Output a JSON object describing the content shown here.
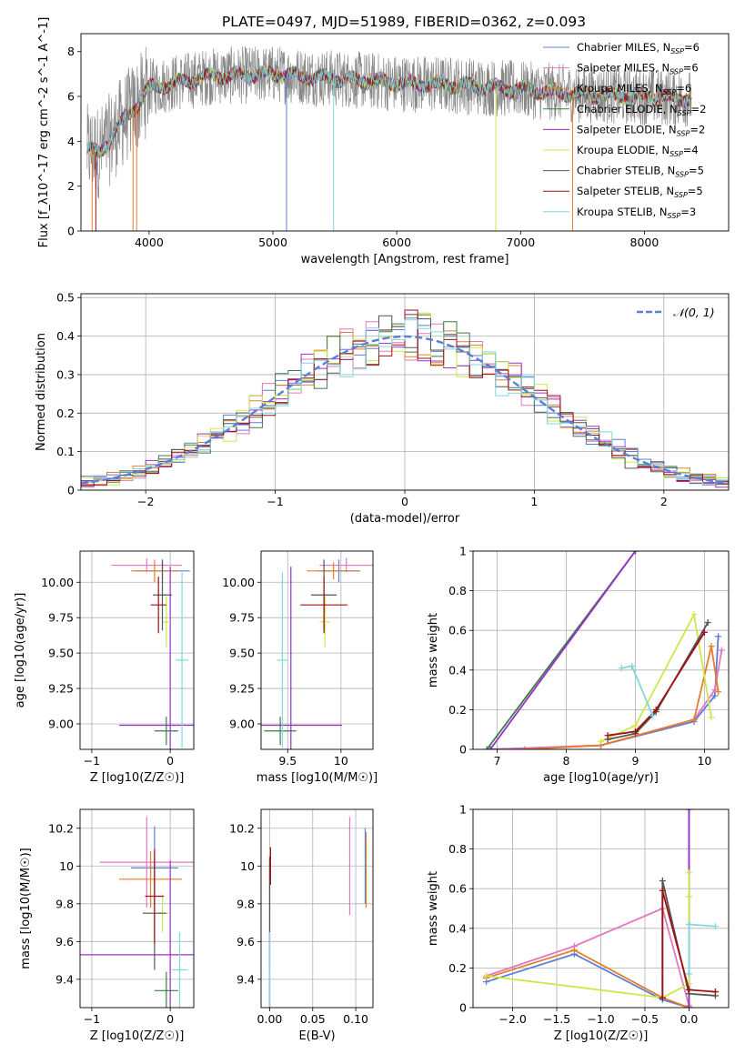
{
  "figure": {
    "title": "PLATE=0497, MJD=51989, FIBERID=0362, z=0.093"
  },
  "colors": {
    "Chabrier MILES": "#5b7fd6",
    "Salpeter MILES": "#e377c2",
    "Kroupa MILES": "#e87b2a",
    "Chabrier ELODIE": "#3a7d44",
    "Salpeter ELODIE": "#9b30c9",
    "Kroupa ELODIE": "#cfe64b",
    "Chabrier STELIB": "#555555",
    "Salpeter STELIB": "#a01010",
    "Kroupa STELIB": "#7fd8dc",
    "data": "#888888"
  },
  "chart_data": [
    {
      "type": "line",
      "panel": "spectrum",
      "xlabel": "wavelength [Angstrom, rest frame]",
      "ylabel": "Flux [f_λ10^-17 erg cm^-2 s^-1 A^-1]",
      "xlim": [
        3450,
        8680
      ],
      "ylim": [
        0,
        8.8
      ],
      "xticks": [
        4000,
        5000,
        6000,
        7000,
        8000
      ],
      "yticks": [
        0,
        2,
        4,
        6,
        8
      ],
      "grid": false,
      "legend_position": "right",
      "legend": [
        {
          "label": "Chabrier MILES, N_SSP=6",
          "series": "Chabrier MILES"
        },
        {
          "label": "Salpeter MILES, N_SSP=6",
          "series": "Salpeter MILES"
        },
        {
          "label": "Kroupa MILES, N_SSP=6",
          "series": "Kroupa MILES"
        },
        {
          "label": "Chabrier ELODIE, N_SSP=2",
          "series": "Chabrier ELODIE"
        },
        {
          "label": "Salpeter ELODIE, N_SSP=2",
          "series": "Salpeter ELODIE"
        },
        {
          "label": "Kroupa ELODIE, N_SSP=4",
          "series": "Kroupa ELODIE"
        },
        {
          "label": "Chabrier STELIB, N_SSP=5",
          "series": "Chabrier STELIB"
        },
        {
          "label": "Salpeter STELIB, N_SSP=5",
          "series": "Salpeter STELIB"
        },
        {
          "label": "Kroupa STELIB, N_SSP=3",
          "series": "Kroupa STELIB"
        }
      ],
      "continuum": {
        "x": [
          3500,
          3600,
          3700,
          3800,
          3900,
          4000,
          4200,
          4500,
          5000,
          5500,
          6000,
          6500,
          7000,
          7500,
          8000,
          8400
        ],
        "y": [
          3.6,
          3.5,
          4.2,
          5.0,
          5.6,
          6.4,
          6.6,
          6.9,
          7.0,
          6.8,
          6.6,
          6.5,
          6.3,
          6.1,
          6.0,
          5.9
        ]
      }
    },
    {
      "type": "line",
      "panel": "residual-distribution",
      "xlabel": "(data-model)/error",
      "ylabel": "Normed distribution",
      "xlim": [
        -2.5,
        2.5
      ],
      "ylim": [
        0,
        0.51
      ],
      "xticks": [
        -2,
        -1,
        0,
        1,
        2
      ],
      "yticks": [
        0.0,
        0.1,
        0.2,
        0.3,
        0.4,
        0.5
      ],
      "grid": true,
      "legend_position": "top-right",
      "legend": [
        {
          "label": "𝒩(0, 1)"
        }
      ],
      "bins": [
        -2.5,
        2.5,
        50
      ]
    },
    {
      "type": "scatter",
      "panel": "age-vs-Z",
      "xlabel": "Z [log10(Z/Z☉)]",
      "ylabel": "age  [log10(age/yr)]",
      "xlim": [
        -1.15,
        0.3
      ],
      "ylim": [
        8.82,
        10.22
      ],
      "xticks": [
        -1,
        0
      ],
      "yticks": [
        9.0,
        9.25,
        9.5,
        9.75,
        10.0
      ],
      "yticklabels": [
        "9.00",
        "9.25",
        "9.50",
        "9.75",
        "10.00"
      ],
      "grid": true,
      "points": [
        {
          "series": "Chabrier MILES",
          "x": -0.1,
          "y": 10.08,
          "xerr": 0.35,
          "yerr": 0.06
        },
        {
          "series": "Salpeter MILES",
          "x": -0.3,
          "y": 10.12,
          "xerr": 0.45,
          "yerr": 0.05
        },
        {
          "series": "Kroupa MILES",
          "x": -0.2,
          "y": 10.08,
          "xerr": 0.3,
          "yerr": 0.08
        },
        {
          "series": "Chabrier ELODIE",
          "x": -0.05,
          "y": 8.95,
          "xerr": 0.15,
          "yerr": 0.1
        },
        {
          "series": "Salpeter ELODIE",
          "x": 0.0,
          "y": 8.99,
          "xerr": 0.65,
          "yerr": 1.12
        },
        {
          "series": "Kroupa ELODIE",
          "x": -0.05,
          "y": 9.72,
          "xerr": 0.05,
          "yerr": 0.18
        },
        {
          "series": "Chabrier STELIB",
          "x": -0.1,
          "y": 9.91,
          "xerr": 0.12,
          "yerr": 0.25
        },
        {
          "series": "Salpeter STELIB",
          "x": -0.15,
          "y": 9.84,
          "xerr": 0.1,
          "yerr": 0.2
        },
        {
          "series": "Kroupa STELIB",
          "x": 0.15,
          "y": 9.45,
          "xerr": 0.08,
          "yerr": 0.62
        }
      ]
    },
    {
      "type": "scatter",
      "panel": "age-vs-mass",
      "xlabel": "mass [log10(M/M☉)]",
      "ylabel": "",
      "xlim": [
        9.25,
        10.3
      ],
      "ylim": [
        8.82,
        10.22
      ],
      "xticks": [
        9.5,
        10.0
      ],
      "yticks": [
        9.0,
        9.25,
        9.5,
        9.75,
        10.0
      ],
      "yticklabels": [
        "9.00",
        "9.25",
        "9.50",
        "9.75",
        "10.00"
      ],
      "grid": true,
      "points": [
        {
          "series": "Chabrier MILES",
          "x": 9.98,
          "y": 10.08,
          "xerr": 0.2,
          "yerr": 0.08
        },
        {
          "series": "Salpeter MILES",
          "x": 10.05,
          "y": 10.12,
          "xerr": 0.25,
          "yerr": 0.05
        },
        {
          "series": "Kroupa MILES",
          "x": 9.93,
          "y": 10.08,
          "xerr": 0.25,
          "yerr": 0.06
        },
        {
          "series": "Chabrier ELODIE",
          "x": 9.43,
          "y": 8.95,
          "xerr": 0.15,
          "yerr": 0.1
        },
        {
          "series": "Salpeter ELODIE",
          "x": 9.53,
          "y": 8.99,
          "xerr": 0.48,
          "yerr": 1.12
        },
        {
          "series": "Kroupa ELODIE",
          "x": 9.85,
          "y": 9.72,
          "xerr": 0.05,
          "yerr": 0.18
        },
        {
          "series": "Chabrier STELIB",
          "x": 9.84,
          "y": 9.91,
          "xerr": 0.12,
          "yerr": 0.25
        },
        {
          "series": "Salpeter STELIB",
          "x": 9.84,
          "y": 9.84,
          "xerr": 0.22,
          "yerr": 0.2
        },
        {
          "series": "Kroupa STELIB",
          "x": 9.45,
          "y": 9.45,
          "xerr": 0.05,
          "yerr": 0.62
        }
      ]
    },
    {
      "type": "line",
      "panel": "mass-weight-vs-age",
      "xlabel": "age  [log10(age/yr)]",
      "ylabel": "mass weight",
      "xlim": [
        6.65,
        10.35
      ],
      "ylim": [
        0,
        1.0
      ],
      "xticks": [
        7,
        8,
        9,
        10
      ],
      "yticks": [
        0.0,
        0.2,
        0.4,
        0.6,
        0.8,
        1.0
      ],
      "grid": true,
      "series": [
        {
          "name": "Chabrier MILES",
          "x": [
            6.9,
            8.5,
            9.85,
            10.15,
            10.2
          ],
          "y": [
            0.0,
            0.02,
            0.14,
            0.27,
            0.57
          ]
        },
        {
          "name": "Salpeter MILES",
          "x": [
            7.0,
            8.5,
            9.85,
            10.15,
            10.25
          ],
          "y": [
            0.0,
            0.02,
            0.15,
            0.3,
            0.5
          ]
        },
        {
          "name": "Kroupa MILES",
          "x": [
            7.4,
            8.5,
            9.85,
            10.1,
            10.2
          ],
          "y": [
            0.0,
            0.02,
            0.15,
            0.52,
            0.29
          ]
        },
        {
          "name": "Chabrier ELODIE",
          "x": [
            6.85,
            9.0
          ],
          "y": [
            0.0,
            1.0
          ]
        },
        {
          "name": "Salpeter ELODIE",
          "x": [
            6.9,
            9.0
          ],
          "y": [
            0.0,
            1.0
          ]
        },
        {
          "name": "Kroupa ELODIE",
          "x": [
            8.5,
            9.0,
            9.85,
            10.1
          ],
          "y": [
            0.04,
            0.12,
            0.68,
            0.16
          ]
        },
        {
          "name": "Chabrier STELIB",
          "x": [
            8.6,
            9.0,
            9.3,
            10.05
          ],
          "y": [
            0.05,
            0.08,
            0.19,
            0.64
          ]
        },
        {
          "name": "Salpeter STELIB",
          "x": [
            8.6,
            9.0,
            9.3,
            10.0
          ],
          "y": [
            0.07,
            0.09,
            0.2,
            0.59
          ]
        },
        {
          "name": "Kroupa STELIB",
          "x": [
            8.8,
            8.95,
            9.25
          ],
          "y": [
            0.41,
            0.42,
            0.17
          ]
        }
      ]
    },
    {
      "type": "scatter",
      "panel": "mass-vs-Z",
      "xlabel": "Z [log10(Z/Z☉)]",
      "ylabel": "mass [log10(M/M☉)]",
      "xlim": [
        -1.15,
        0.3
      ],
      "ylim": [
        9.25,
        10.3
      ],
      "xticks": [
        -1,
        0
      ],
      "yticks": [
        9.4,
        9.6,
        9.8,
        10.0,
        10.2
      ],
      "grid": true,
      "points": [
        {
          "series": "Chabrier MILES",
          "x": -0.2,
          "y": 9.99,
          "xerr": 0.3,
          "yerr": 0.22
        },
        {
          "series": "Salpeter MILES",
          "x": -0.3,
          "y": 10.02,
          "xerr": 0.6,
          "yerr": 0.24
        },
        {
          "series": "Kroupa MILES",
          "x": -0.25,
          "y": 9.93,
          "xerr": 0.4,
          "yerr": 0.15
        },
        {
          "series": "Chabrier ELODIE",
          "x": -0.05,
          "y": 9.34,
          "xerr": 0.15,
          "yerr": 0.1
        },
        {
          "series": "Salpeter ELODIE",
          "x": 0.0,
          "y": 9.53,
          "xerr": 1.15,
          "yerr": 0.5
        },
        {
          "series": "Kroupa ELODIE",
          "x": -0.1,
          "y": 9.75,
          "xerr": 0.08,
          "yerr": 0.1
        },
        {
          "series": "Chabrier STELIB",
          "x": -0.2,
          "y": 9.75,
          "xerr": 0.15,
          "yerr": 0.3
        },
        {
          "series": "Salpeter STELIB",
          "x": -0.2,
          "y": 9.84,
          "xerr": 0.12,
          "yerr": 0.25
        },
        {
          "series": "Kroupa STELIB",
          "x": 0.12,
          "y": 9.45,
          "xerr": 0.1,
          "yerr": 0.2
        }
      ]
    },
    {
      "type": "scatter",
      "panel": "mass-vs-ebv",
      "xlabel": "E(B-V)",
      "ylabel": "",
      "xlim": [
        -0.01,
        0.12
      ],
      "ylim": [
        9.25,
        10.3
      ],
      "xticks": [
        0.0,
        0.05,
        0.1
      ],
      "xticklabels": [
        "0.00",
        "0.05",
        "0.10"
      ],
      "yticks": [
        9.4,
        9.6,
        9.8,
        10.0,
        10.2
      ],
      "grid": true,
      "points": [
        {
          "series": "Chabrier MILES",
          "x": 0.111,
          "y": 10.0,
          "xerr": 0,
          "yerr": 0.2
        },
        {
          "series": "Salpeter MILES",
          "x": 0.093,
          "y": 10.0,
          "xerr": 0,
          "yerr": 0.26
        },
        {
          "series": "Kroupa MILES",
          "x": 0.112,
          "y": 9.98,
          "xerr": 0,
          "yerr": 0.2
        },
        {
          "series": "Chabrier ELODIE",
          "x": 0.0,
          "y": 9.34,
          "xerr": 0,
          "yerr": 0.1
        },
        {
          "series": "Salpeter ELODIE",
          "x": 0.0,
          "y": 9.53,
          "xerr": 0,
          "yerr": 0.5
        },
        {
          "series": "Kroupa ELODIE",
          "x": 0.0,
          "y": 9.75,
          "xerr": 0,
          "yerr": 0.1
        },
        {
          "series": "Chabrier STELIB",
          "x": 0.0,
          "y": 9.75,
          "xerr": 0,
          "yerr": 0.3
        },
        {
          "series": "Salpeter STELIB",
          "x": 0.001,
          "y": 10.0,
          "xerr": 0,
          "yerr": 0.1
        },
        {
          "series": "Kroupa STELIB",
          "x": 0.0,
          "y": 9.45,
          "xerr": 0,
          "yerr": 0.2
        }
      ]
    },
    {
      "type": "line",
      "panel": "mass-weight-vs-Z",
      "xlabel": "Z [log10(Z/Z☉)]",
      "ylabel": "mass weight",
      "xlim": [
        -2.45,
        0.45
      ],
      "ylim": [
        0,
        1.0
      ],
      "xticks": [
        -2.0,
        -1.5,
        -1.0,
        -0.5,
        0.0
      ],
      "xticklabels": [
        "−2.0",
        "−1.5",
        "−1.0",
        "−0.5",
        "0.0"
      ],
      "yticks": [
        0.0,
        0.2,
        0.4,
        0.6,
        0.8,
        1.0
      ],
      "grid": true,
      "series": [
        {
          "name": "Chabrier MILES",
          "x": [
            -2.3,
            -1.3,
            -0.3,
            0.0
          ],
          "y": [
            0.13,
            0.27,
            0.04,
            0.0
          ]
        },
        {
          "name": "Salpeter MILES",
          "x": [
            -2.3,
            -1.3,
            -0.3,
            0.0
          ],
          "y": [
            0.16,
            0.31,
            0.5,
            0.01
          ]
        },
        {
          "name": "Kroupa MILES",
          "x": [
            -2.3,
            -1.3,
            -0.3,
            0.0
          ],
          "y": [
            0.15,
            0.29,
            0.05,
            0.0
          ]
        },
        {
          "name": "Chabrier ELODIE",
          "x": [
            0.0,
            0.0
          ],
          "y": [
            0.0,
            1.0
          ]
        },
        {
          "name": "Salpeter ELODIE",
          "x": [
            0.0,
            0.0
          ],
          "y": [
            0.0,
            1.0
          ]
        },
        {
          "name": "Kroupa ELODIE",
          "x": [
            -2.3,
            -0.3,
            0.0,
            0.0,
            0.0
          ],
          "y": [
            0.16,
            0.05,
            0.12,
            0.56,
            0.68
          ]
        },
        {
          "name": "Chabrier STELIB",
          "x": [
            -0.3,
            -0.3,
            0.0,
            0.3
          ],
          "y": [
            0.05,
            0.64,
            0.07,
            0.06
          ]
        },
        {
          "name": "Salpeter STELIB",
          "x": [
            -0.3,
            -0.3,
            0.0,
            0.3
          ],
          "y": [
            0.05,
            0.59,
            0.09,
            0.08
          ]
        },
        {
          "name": "Kroupa STELIB",
          "x": [
            0.0,
            0.0,
            0.3
          ],
          "y": [
            0.17,
            0.42,
            0.41
          ]
        }
      ]
    }
  ]
}
